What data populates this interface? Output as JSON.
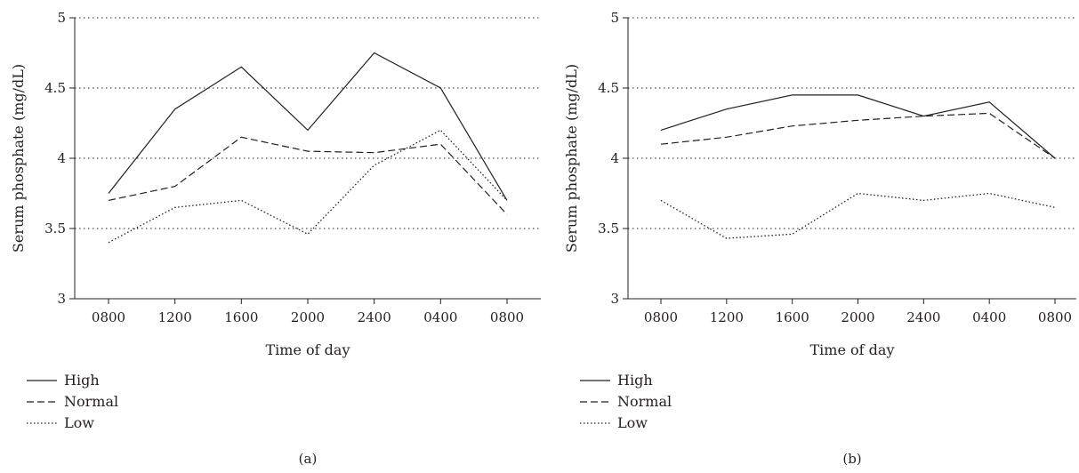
{
  "chart_data": [
    {
      "type": "line",
      "label": "(a)",
      "xlabel": "Time of day",
      "ylabel": "Serum phosphate (mg/dL)",
      "categories": [
        "0800",
        "1200",
        "1600",
        "2000",
        "2400",
        "0400",
        "0800"
      ],
      "ylim": [
        3,
        5
      ],
      "yticks": [
        "3",
        "3.5",
        "4",
        "4.5",
        "5"
      ],
      "grid": "horizontal dotted",
      "legend_position": "bottom-left",
      "series": [
        {
          "name": "High",
          "style": "solid",
          "values": [
            3.75,
            4.35,
            4.65,
            4.2,
            4.75,
            4.5,
            3.7
          ]
        },
        {
          "name": "Normal",
          "style": "dashed",
          "values": [
            3.7,
            3.8,
            4.15,
            4.05,
            4.04,
            4.1,
            3.6
          ]
        },
        {
          "name": "Low",
          "style": "dotted",
          "values": [
            3.4,
            3.65,
            3.7,
            3.46,
            3.95,
            4.2,
            3.7
          ]
        }
      ]
    },
    {
      "type": "line",
      "label": "(b)",
      "xlabel": "Time of day",
      "ylabel": "Serum phosphate (mg/dL)",
      "categories": [
        "0800",
        "1200",
        "1600",
        "2000",
        "2400",
        "0400",
        "0800"
      ],
      "ylim": [
        3,
        5
      ],
      "yticks": [
        "3",
        "3.5",
        "4",
        "4.5",
        "5"
      ],
      "grid": "horizontal dotted",
      "legend_position": "bottom-left",
      "series": [
        {
          "name": "High",
          "style": "solid",
          "values": [
            4.2,
            4.35,
            4.45,
            4.45,
            4.3,
            4.4,
            4.0
          ]
        },
        {
          "name": "Normal",
          "style": "dashed",
          "values": [
            4.1,
            4.15,
            4.23,
            4.27,
            4.3,
            4.32,
            4.0
          ]
        },
        {
          "name": "Low",
          "style": "dotted",
          "values": [
            3.7,
            3.43,
            3.46,
            3.75,
            3.7,
            3.75,
            3.65
          ]
        }
      ]
    }
  ]
}
